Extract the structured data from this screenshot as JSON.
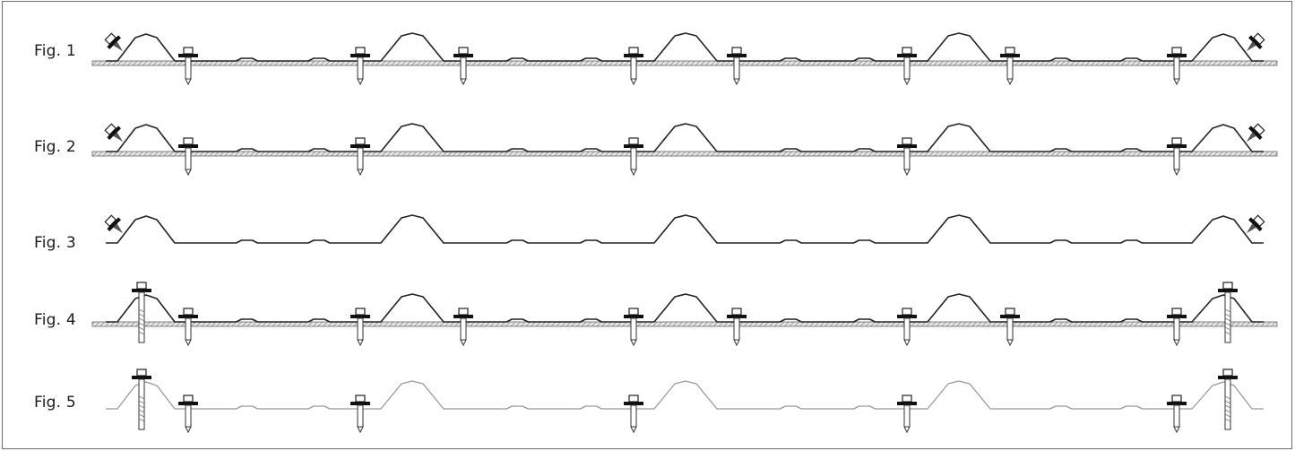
{
  "figures": [
    {
      "label": "Fig. 1",
      "fasteners": "crest-ends + valleys both sides of each crest",
      "substrate": true
    },
    {
      "label": "Fig. 2",
      "fasteners": "crest-ends + valley left of each crest",
      "substrate": true
    },
    {
      "label": "Fig. 3",
      "fasteners": "crest-ends only",
      "substrate": false
    },
    {
      "label": "Fig. 4",
      "fasteners": "end crests through + valleys both sides",
      "substrate": true
    },
    {
      "label": "Fig. 5",
      "fasteners": "end crests through + valley left of each crest",
      "substrate": false
    }
  ]
}
